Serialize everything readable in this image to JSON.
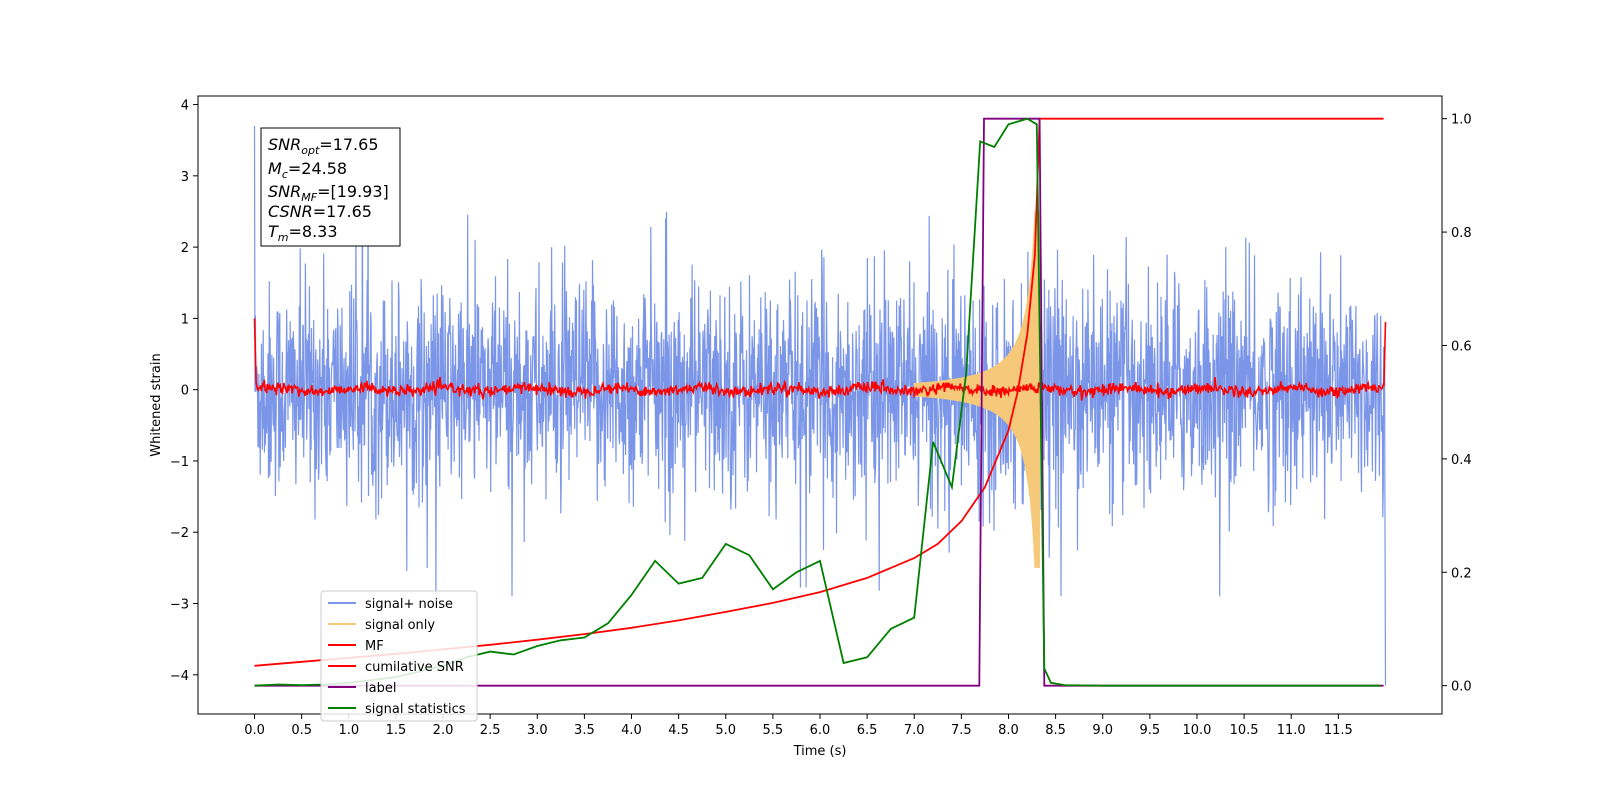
{
  "chart_data": {
    "type": "line",
    "xlabel": "Time (s)",
    "ylabel_left": "Whitened strain",
    "ylabel_right": "",
    "xlim": [
      -0.6,
      12.6
    ],
    "ylim_left": [
      -4.55,
      4.12
    ],
    "ylim_right": [
      -0.05,
      1.04
    ],
    "x_ticks": [
      "0.0",
      "0.5",
      "1.0",
      "1.5",
      "2.0",
      "2.5",
      "3.0",
      "3.5",
      "4.0",
      "4.5",
      "5.0",
      "5.5",
      "6.0",
      "6.5",
      "7.0",
      "7.5",
      "8.0",
      "8.5",
      "9.0",
      "9.5",
      "10.0",
      "10.5",
      "11.0",
      "11.5"
    ],
    "x_tick_values": [
      0,
      0.5,
      1,
      1.5,
      2,
      2.5,
      3,
      3.5,
      4,
      4.5,
      5,
      5.5,
      6,
      6.5,
      7,
      7.5,
      8,
      8.5,
      9,
      9.5,
      10,
      10.5,
      11,
      11.5
    ],
    "y_ticks_left": [
      "−4",
      "−3",
      "−2",
      "−1",
      "0",
      "1",
      "2",
      "3",
      "4"
    ],
    "y_tick_values_left": [
      -4,
      -3,
      -2,
      -1,
      0,
      1,
      2,
      3,
      4
    ],
    "y_ticks_right": [
      "0.0",
      "0.2",
      "0.4",
      "0.6",
      "0.8",
      "1.0"
    ],
    "y_tick_values_right": [
      0,
      0.2,
      0.4,
      0.6,
      0.8,
      1.0
    ],
    "grid": false,
    "legend_position": "lower-left",
    "stats_box": {
      "snr_opt": {
        "sym": "SNR",
        "sub": "opt",
        "value": "=17.65"
      },
      "mc": {
        "sym": "M",
        "sub": "c",
        "value": "=24.58"
      },
      "snr_mf": {
        "sym": "SNR",
        "sub": "MF",
        "value": "=[19.93]"
      },
      "csnr": {
        "sym": "CSNR",
        "sub": "",
        "value": "=17.65"
      },
      "tm": {
        "sym": "T",
        "sub": "m",
        "value": "=8.33"
      }
    },
    "series": [
      {
        "name": "signal+ noise",
        "color": "#7b96e8",
        "axis": "left",
        "style": "noise",
        "duration": 12.0,
        "amplitude_rms": 0.75
      },
      {
        "name": "signal only",
        "color": "#f5c87a",
        "axis": "left",
        "style": "chirp",
        "t_merger": 8.33,
        "peak_amplitude": 2.5
      },
      {
        "name": "MF",
        "color": "#ff0000",
        "axis": "left",
        "style": "mf",
        "amplitude_rms": 0.04
      },
      {
        "name": "cumilative SNR",
        "color": "#ff0000",
        "axis": "right",
        "x": [
          0,
          0.5,
          1,
          1.5,
          2,
          2.5,
          3,
          3.5,
          4,
          4.5,
          5,
          5.5,
          6,
          6.5,
          7,
          7.25,
          7.5,
          7.75,
          8.0,
          8.1,
          8.2,
          8.28,
          8.33,
          8.35,
          9,
          10,
          11,
          11.98
        ],
        "values": [
          0.035,
          0.042,
          0.049,
          0.056,
          0.064,
          0.072,
          0.081,
          0.091,
          0.102,
          0.115,
          0.13,
          0.146,
          0.165,
          0.19,
          0.225,
          0.25,
          0.29,
          0.35,
          0.45,
          0.52,
          0.62,
          0.76,
          1.0,
          1.0,
          1.0,
          1.0,
          1.0,
          1.0
        ]
      },
      {
        "name": "label",
        "color": "#800080",
        "axis": "right",
        "x": [
          0,
          7.69,
          7.74,
          8.33,
          8.38,
          11.98
        ],
        "values": [
          0,
          0,
          1,
          1,
          0,
          0
        ]
      },
      {
        "name": "signal statistics",
        "color": "#008000",
        "axis": "right",
        "x": [
          0,
          0.25,
          0.5,
          0.75,
          1,
          1.25,
          1.5,
          1.75,
          2,
          2.25,
          2.5,
          2.75,
          3,
          3.25,
          3.5,
          3.75,
          4,
          4.25,
          4.5,
          4.75,
          5,
          5.25,
          5.5,
          5.75,
          6,
          6.25,
          6.5,
          6.75,
          7,
          7.2,
          7.4,
          7.55,
          7.7,
          7.85,
          8.0,
          8.2,
          8.3,
          8.38,
          8.45,
          8.6,
          9,
          10,
          11,
          11.95
        ],
        "values": [
          0,
          0.002,
          0.001,
          0.002,
          0.005,
          0.01,
          0.015,
          0.025,
          0.035,
          0.05,
          0.06,
          0.055,
          0.07,
          0.08,
          0.085,
          0.11,
          0.16,
          0.22,
          0.18,
          0.19,
          0.25,
          0.23,
          0.17,
          0.2,
          0.22,
          0.04,
          0.05,
          0.1,
          0.12,
          0.43,
          0.35,
          0.55,
          0.96,
          0.95,
          0.99,
          1.0,
          0.99,
          0.03,
          0.005,
          0.001,
          0.0,
          0.0,
          0.0,
          0.0
        ]
      }
    ]
  }
}
